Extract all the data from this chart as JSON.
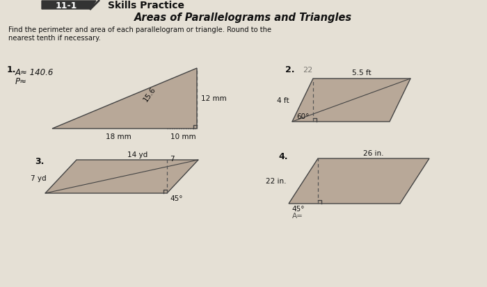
{
  "bg_color": "#e5e0d5",
  "title_section": "11-1",
  "title_label": "Skills Practice",
  "subtitle": "Areas of Parallelograms and Triangles",
  "instructions": "Find the perimeter and area of each parallelogram or triangle. Round to the\nnearest tenth if necessary.",
  "p1_label": "1.",
  "p1_ans1": "A≈ 140.6",
  "p1_ans2": "P≈",
  "p1_dim_base": "18 mm",
  "p1_dim_ext": "10 mm",
  "p1_dim_height": "12 mm",
  "p1_dim_slant": "15.6",
  "p2_label": "2.",
  "p2_ans": "22",
  "p2_dim_top": "5.5 ft",
  "p2_dim_side": "4 ft",
  "p2_dim_angle": "60°",
  "p3_label": "3.",
  "p3_dim_top": "14 yd",
  "p3_dim_side": "7 yd",
  "p3_dim_angle": "45°",
  "p3_tick": "7",
  "p4_label": "4.",
  "p4_dim_top": "26 in.",
  "p4_dim_side": "22 in.",
  "p4_dim_angle": "45°",
  "shape_fill": "#b8a898",
  "shape_edge": "#444444",
  "dashed_color": "#555555",
  "text_color": "#111111",
  "header_fill": "#333333",
  "header_text": "#ffffff"
}
